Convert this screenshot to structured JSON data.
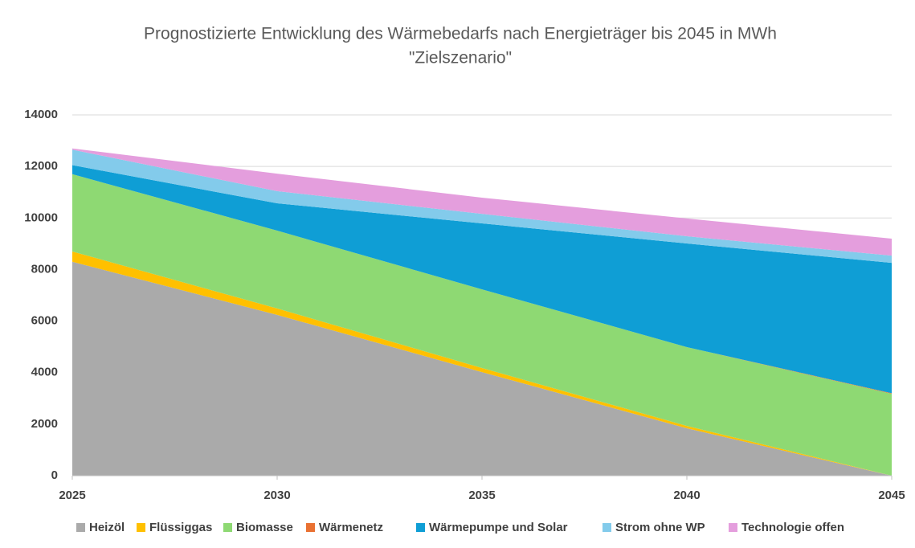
{
  "chart_data": {
    "type": "stacked_area",
    "title": [
      "Prognostizierte Entwicklung des Wärmebedarfs nach Energieträger bis 2045 in MWh",
      "\"Zielszenario\""
    ],
    "x": [
      2025,
      2030,
      2035,
      2040,
      2045
    ],
    "xlim": [
      2025,
      2045
    ],
    "xticks": [
      2025,
      2030,
      2035,
      2040,
      2045
    ],
    "ylim": [
      0,
      14000
    ],
    "yticks": [
      0,
      2000,
      4000,
      6000,
      8000,
      10000,
      12000,
      14000
    ],
    "grid": true,
    "legend": "bottom",
    "series": [
      {
        "name": "Heizöl",
        "color": "#aaaaaa",
        "values": [
          8300,
          6240,
          4020,
          1840,
          0
        ]
      },
      {
        "name": "Flüssiggas",
        "color": "#ffc000",
        "values": [
          400,
          250,
          160,
          90,
          0
        ]
      },
      {
        "name": "Biomasse",
        "color": "#8ed973",
        "values": [
          3000,
          3020,
          3050,
          3060,
          3180
        ]
      },
      {
        "name": "Wärmenetz",
        "color": "#e97132",
        "values": [
          0,
          0,
          0,
          0,
          20
        ]
      },
      {
        "name": "Wärmepumpe und Solar",
        "color": "#0f9ed5",
        "values": [
          350,
          1060,
          2560,
          4020,
          5060
        ]
      },
      {
        "name": "Strom ohne WP",
        "color": "#83cbeb",
        "values": [
          600,
          470,
          370,
          280,
          280
        ]
      },
      {
        "name": "Technologie offen",
        "color": "#e49edd",
        "values": [
          50,
          680,
          630,
          690,
          660
        ]
      }
    ]
  }
}
